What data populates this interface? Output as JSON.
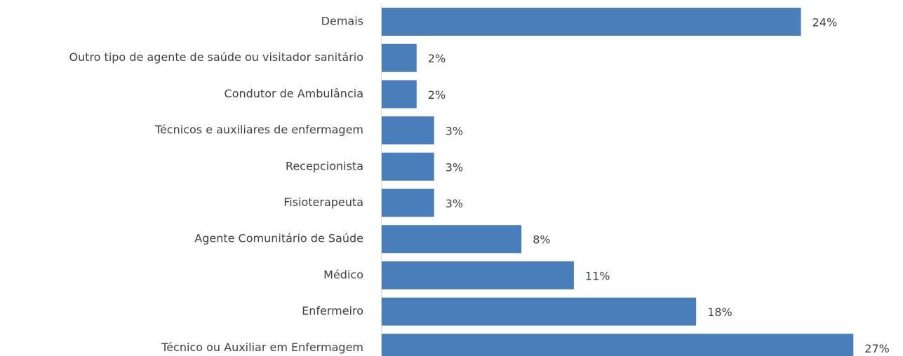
{
  "chart_data": {
    "type": "bar",
    "orientation": "horizontal",
    "categories": [
      "Demais",
      "Outro tipo de agente de saúde ou visitador sanitário",
      "Condutor de Ambulância",
      "Técnicos e auxiliares de enfermagem",
      "Recepcionista",
      "Fisioterapeuta",
      "Agente Comunitário de Saúde",
      "Médico",
      "Enfermeiro",
      "Técnico ou Auxiliar em Enfermagem"
    ],
    "values": [
      24,
      2,
      2,
      3,
      3,
      3,
      8,
      11,
      18,
      27
    ],
    "value_labels": [
      "24%",
      "2%",
      "2%",
      "3%",
      "3%",
      "3%",
      "8%",
      "11%",
      "18%",
      "27%"
    ],
    "color": "#4a7ebb"
  }
}
